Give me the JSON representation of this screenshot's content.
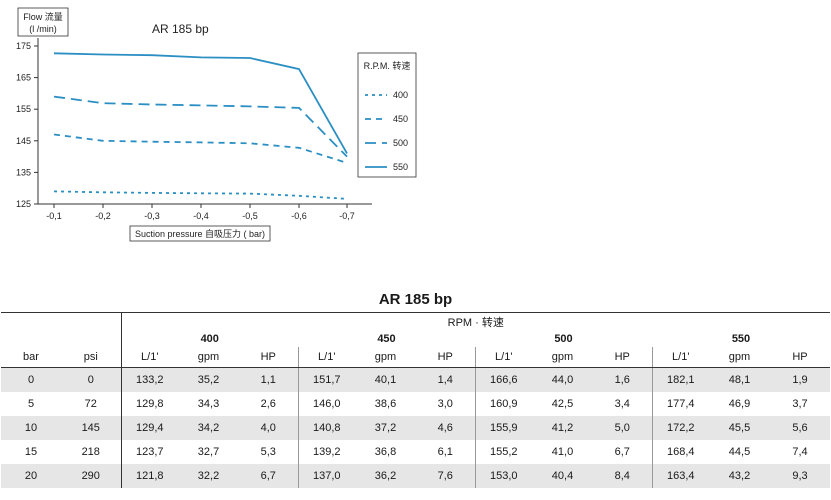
{
  "chart_data": {
    "type": "line",
    "title": "AR 185 bp",
    "ylabel": "Flow 流量\n(l /min)",
    "xlabel": "Suction pressure 自吸压力 ( bar)",
    "x": [
      "-0,1",
      "-0,2",
      "-0,3",
      "-0,4",
      "-0,5",
      "-0,6",
      "-0,7"
    ],
    "y_ticks": [
      "175",
      "165",
      "155",
      "145",
      "135",
      "125"
    ],
    "ylim": [
      125,
      175
    ],
    "legend_title": "R.P.M. 转速",
    "legend_position": "right",
    "line_color": "#2b8fc4",
    "series": [
      {
        "name": "400",
        "dash": "dotted",
        "values": [
          129,
          128.7,
          128.5,
          128.4,
          128.3,
          127.6,
          126.6
        ]
      },
      {
        "name": "450",
        "dash": "dashed-short",
        "values": [
          147,
          145,
          144.7,
          144.5,
          144.2,
          142.8,
          138
        ]
      },
      {
        "name": "500",
        "dash": "dashed-long",
        "values": [
          159,
          156.9,
          156.5,
          156.2,
          155.9,
          155.4,
          140
        ]
      },
      {
        "name": "550",
        "dash": "solid",
        "values": [
          172.7,
          172.3,
          172.1,
          171.4,
          171.2,
          167.7,
          141
        ]
      }
    ]
  },
  "table": {
    "title": "AR 185 bp",
    "rpm_header": "RPM · 转速",
    "groups": [
      "400",
      "450",
      "500",
      "550"
    ],
    "col_bar": "bar",
    "col_psi": "psi",
    "sub": [
      "L/1'",
      "gpm",
      "HP"
    ],
    "rows": [
      [
        "0",
        "0",
        "133,2",
        "35,2",
        "1,1",
        "151,7",
        "40,1",
        "1,4",
        "166,6",
        "44,0",
        "1,6",
        "182,1",
        "48,1",
        "1,9"
      ],
      [
        "5",
        "72",
        "129,8",
        "34,3",
        "2,6",
        "146,0",
        "38,6",
        "3,0",
        "160,9",
        "42,5",
        "3,4",
        "177,4",
        "46,9",
        "3,7"
      ],
      [
        "10",
        "145",
        "129,4",
        "34,2",
        "4,0",
        "140,8",
        "37,2",
        "4,6",
        "155,9",
        "41,2",
        "5,0",
        "172,2",
        "45,5",
        "5,6"
      ],
      [
        "15",
        "218",
        "123,7",
        "32,7",
        "5,3",
        "139,2",
        "36,8",
        "6,1",
        "155,2",
        "41,0",
        "6,7",
        "168,4",
        "44,5",
        "7,4"
      ],
      [
        "20",
        "290",
        "121,8",
        "32,2",
        "6,7",
        "137,0",
        "36,2",
        "7,6",
        "153,0",
        "40,4",
        "8,4",
        "163,4",
        "43,2",
        "9,3"
      ]
    ]
  }
}
